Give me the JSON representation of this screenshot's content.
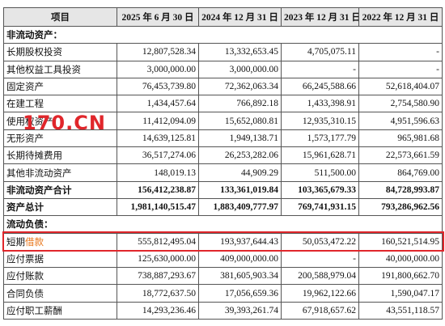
{
  "table": {
    "header": [
      "项目",
      "2025 年 6 月 30 日",
      "2024 年 12 月 31 日",
      "2023 年 12 月 31 日",
      "2022 年 12 月 31 日"
    ],
    "rows": [
      {
        "label": "非流动资产：",
        "section": true
      },
      {
        "label": "长期股权投资",
        "values": [
          "12,807,528.34",
          "13,332,653.45",
          "4,705,075.11",
          "-"
        ]
      },
      {
        "label": "其他权益工具投资",
        "values": [
          "3,000,000.00",
          "3,000,000.00",
          "-",
          "-"
        ]
      },
      {
        "label": "固定资产",
        "values": [
          "76,453,739.80",
          "72,362,063.34",
          "66,245,588.66",
          "52,618,404.07"
        ]
      },
      {
        "label": "在建工程",
        "values": [
          "1,434,457.64",
          "766,892.18",
          "1,433,398.91",
          "2,754,580.90"
        ]
      },
      {
        "label": "使用权资产",
        "values": [
          "11,412,094.09",
          "15,652,080.81",
          "12,935,310.15",
          "4,951,596.63"
        ]
      },
      {
        "label": "无形资产",
        "values": [
          "14,639,125.81",
          "1,949,138.71",
          "1,573,177.79",
          "965,981.68"
        ]
      },
      {
        "label": "长期待摊费用",
        "values": [
          "36,517,274.06",
          "26,253,282.06",
          "15,961,628.71",
          "22,573,661.59"
        ]
      },
      {
        "label": "其他非流动资产",
        "values": [
          "148,019.13",
          "44,909.29",
          "511,500.00",
          "864,769.00"
        ]
      },
      {
        "label": "非流动资产合计",
        "bold": true,
        "values": [
          "156,412,238.87",
          "133,361,019.84",
          "103,365,679.33",
          "84,728,993.87"
        ]
      },
      {
        "label": "资产总计",
        "bold": true,
        "values": [
          "1,981,140,515.47",
          "1,883,409,777.97",
          "769,741,931.15",
          "793,286,962.56"
        ]
      },
      {
        "label": "流动负债：",
        "section": true
      },
      {
        "label_parts": [
          "短期",
          "借款"
        ],
        "highlight": true,
        "values": [
          "555,812,495.04",
          "193,937,644.43",
          "50,053,472.22",
          "160,521,514.95"
        ]
      },
      {
        "label": "应付票据",
        "values": [
          "125,630,000.00",
          "409,000,000.00",
          "-",
          "40,000,000.00"
        ]
      },
      {
        "label": "应付账款",
        "values": [
          "738,887,293.67",
          "381,605,903.34",
          "200,588,979.04",
          "191,800,662.70"
        ]
      },
      {
        "label": "合同负债",
        "values": [
          "18,772,637.50",
          "17,056,659.36",
          "19,962,122.66",
          "1,590,047.17"
        ]
      },
      {
        "label": "应付职工薪酬",
        "values": [
          "14,293,236.46",
          "39,393,261.74",
          "67,918,657.62",
          "43,551,118.57"
        ]
      }
    ]
  },
  "watermark": "170.CN"
}
